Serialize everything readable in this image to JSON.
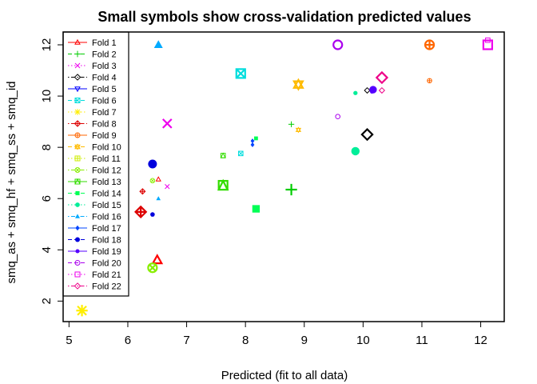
{
  "chart_data": {
    "type": "scatter",
    "title": "Small symbols show cross-validation predicted values",
    "xlabel": "Predicted (fit to all data)",
    "ylabel": "smq_as + smq_hf + smq_ss + smq_id",
    "xlim": [
      4.9,
      12.4
    ],
    "ylim": [
      1.2,
      12.5
    ],
    "xticks": [
      5,
      6,
      7,
      8,
      9,
      10,
      11,
      12
    ],
    "yticks": [
      2,
      4,
      6,
      8,
      10,
      12
    ],
    "legend_position": "top-left",
    "series": [
      {
        "name": "Fold 1",
        "color": "#ff0000",
        "symbol": "triangle-up",
        "line": "solid",
        "big": [
          [
            6.5,
            3.6
          ]
        ],
        "small": [
          [
            6.52,
            6.75
          ]
        ]
      },
      {
        "name": "Fold 2",
        "color": "#00cc00",
        "symbol": "plus",
        "line": "dashed",
        "big": [
          [
            8.78,
            6.35
          ]
        ],
        "small": [
          [
            8.78,
            8.9
          ]
        ]
      },
      {
        "name": "Fold 3",
        "color": "#ee00ee",
        "symbol": "cross",
        "line": "dotted",
        "big": [
          [
            6.67,
            8.93
          ]
        ],
        "small": [
          [
            6.67,
            6.47
          ]
        ]
      },
      {
        "name": "Fold 4",
        "color": "#000000",
        "symbol": "diamond",
        "line": "dotdash",
        "big": [
          [
            10.07,
            8.5
          ]
        ],
        "small": [
          [
            10.07,
            10.22
          ]
        ]
      },
      {
        "name": "Fold 5",
        "color": "#0000ff",
        "symbol": "triangle-down",
        "line": "solid",
        "big": [],
        "small": []
      },
      {
        "name": "Fold 6",
        "color": "#00dddd",
        "symbol": "square-cross",
        "line": "dashed",
        "big": [
          [
            7.92,
            10.88
          ]
        ],
        "small": [
          [
            7.92,
            7.76
          ]
        ]
      },
      {
        "name": "Fold 7",
        "color": "#ffee00",
        "symbol": "asterisk",
        "line": "dotted",
        "big": [
          [
            5.22,
            1.63
          ]
        ],
        "small": []
      },
      {
        "name": "Fold 8",
        "color": "#dd0000",
        "symbol": "diamond-plus",
        "line": "dotdash",
        "big": [
          [
            6.22,
            5.48
          ]
        ],
        "small": [
          [
            6.25,
            6.28
          ]
        ]
      },
      {
        "name": "Fold 9",
        "color": "#ff6600",
        "symbol": "circle-plus",
        "line": "solid",
        "big": [
          [
            11.13,
            12.0
          ]
        ],
        "small": [
          [
            11.13,
            10.6
          ]
        ]
      },
      {
        "name": "Fold 10",
        "color": "#ffbb00",
        "symbol": "star-david",
        "line": "dashed",
        "big": [
          [
            8.9,
            10.45
          ]
        ],
        "small": [
          [
            8.9,
            8.68
          ]
        ]
      },
      {
        "name": "Fold 11",
        "color": "#ccee00",
        "symbol": "square-plus",
        "line": "dotted",
        "big": [],
        "small": []
      },
      {
        "name": "Fold 12",
        "color": "#88ee00",
        "symbol": "circle-cross",
        "line": "dotdash",
        "big": [
          [
            6.42,
            3.3
          ]
        ],
        "small": [
          [
            6.42,
            6.7
          ]
        ]
      },
      {
        "name": "Fold 13",
        "color": "#33dd00",
        "symbol": "square-tri",
        "line": "solid",
        "big": [
          [
            7.62,
            6.52
          ]
        ],
        "small": [
          [
            7.62,
            7.68
          ]
        ]
      },
      {
        "name": "Fold 14",
        "color": "#00ff55",
        "symbol": "square-filled",
        "line": "dashed",
        "big": [
          [
            8.18,
            5.6
          ]
        ],
        "small": [
          [
            8.18,
            8.35
          ]
        ]
      },
      {
        "name": "Fold 15",
        "color": "#00ee99",
        "symbol": "circle-filled",
        "line": "dotted",
        "big": [
          [
            9.87,
            7.85
          ]
        ],
        "small": [
          [
            9.87,
            10.12
          ]
        ]
      },
      {
        "name": "Fold 16",
        "color": "#00aaff",
        "symbol": "triangle-filled",
        "line": "dotdash",
        "big": [
          [
            6.52,
            12.0
          ]
        ],
        "small": [
          [
            6.52,
            6.0
          ]
        ]
      },
      {
        "name": "Fold 17",
        "color": "#0044ff",
        "symbol": "diamond-filled",
        "line": "solid",
        "big": [],
        "small": [
          [
            8.12,
            8.25
          ],
          [
            8.12,
            8.1
          ]
        ]
      },
      {
        "name": "Fold 18",
        "color": "#0000dd",
        "symbol": "dot",
        "line": "dashed",
        "big": [
          [
            6.42,
            7.35
          ]
        ],
        "small": [
          [
            6.42,
            5.38
          ]
        ]
      },
      {
        "name": "Fold 19",
        "color": "#5500ff",
        "symbol": "dot-small",
        "line": "solid",
        "big": [
          [
            10.17,
            10.25
          ]
        ],
        "small": [
          [
            10.15,
            10.17
          ]
        ]
      },
      {
        "name": "Fold 20",
        "color": "#aa00ee",
        "symbol": "circle",
        "line": "dashed",
        "big": [
          [
            9.57,
            12.0
          ]
        ],
        "small": [
          [
            9.57,
            9.2
          ]
        ]
      },
      {
        "name": "Fold 21",
        "color": "#ee00ee",
        "symbol": "square",
        "line": "dotted",
        "big": [
          [
            12.12,
            12.0
          ]
        ],
        "small": [
          [
            12.12,
            12.18
          ]
        ]
      },
      {
        "name": "Fold 22",
        "color": "#ee0088",
        "symbol": "diamond",
        "line": "dotdash",
        "big": [
          [
            10.32,
            10.72
          ]
        ],
        "small": [
          [
            10.32,
            10.22
          ]
        ]
      }
    ]
  }
}
